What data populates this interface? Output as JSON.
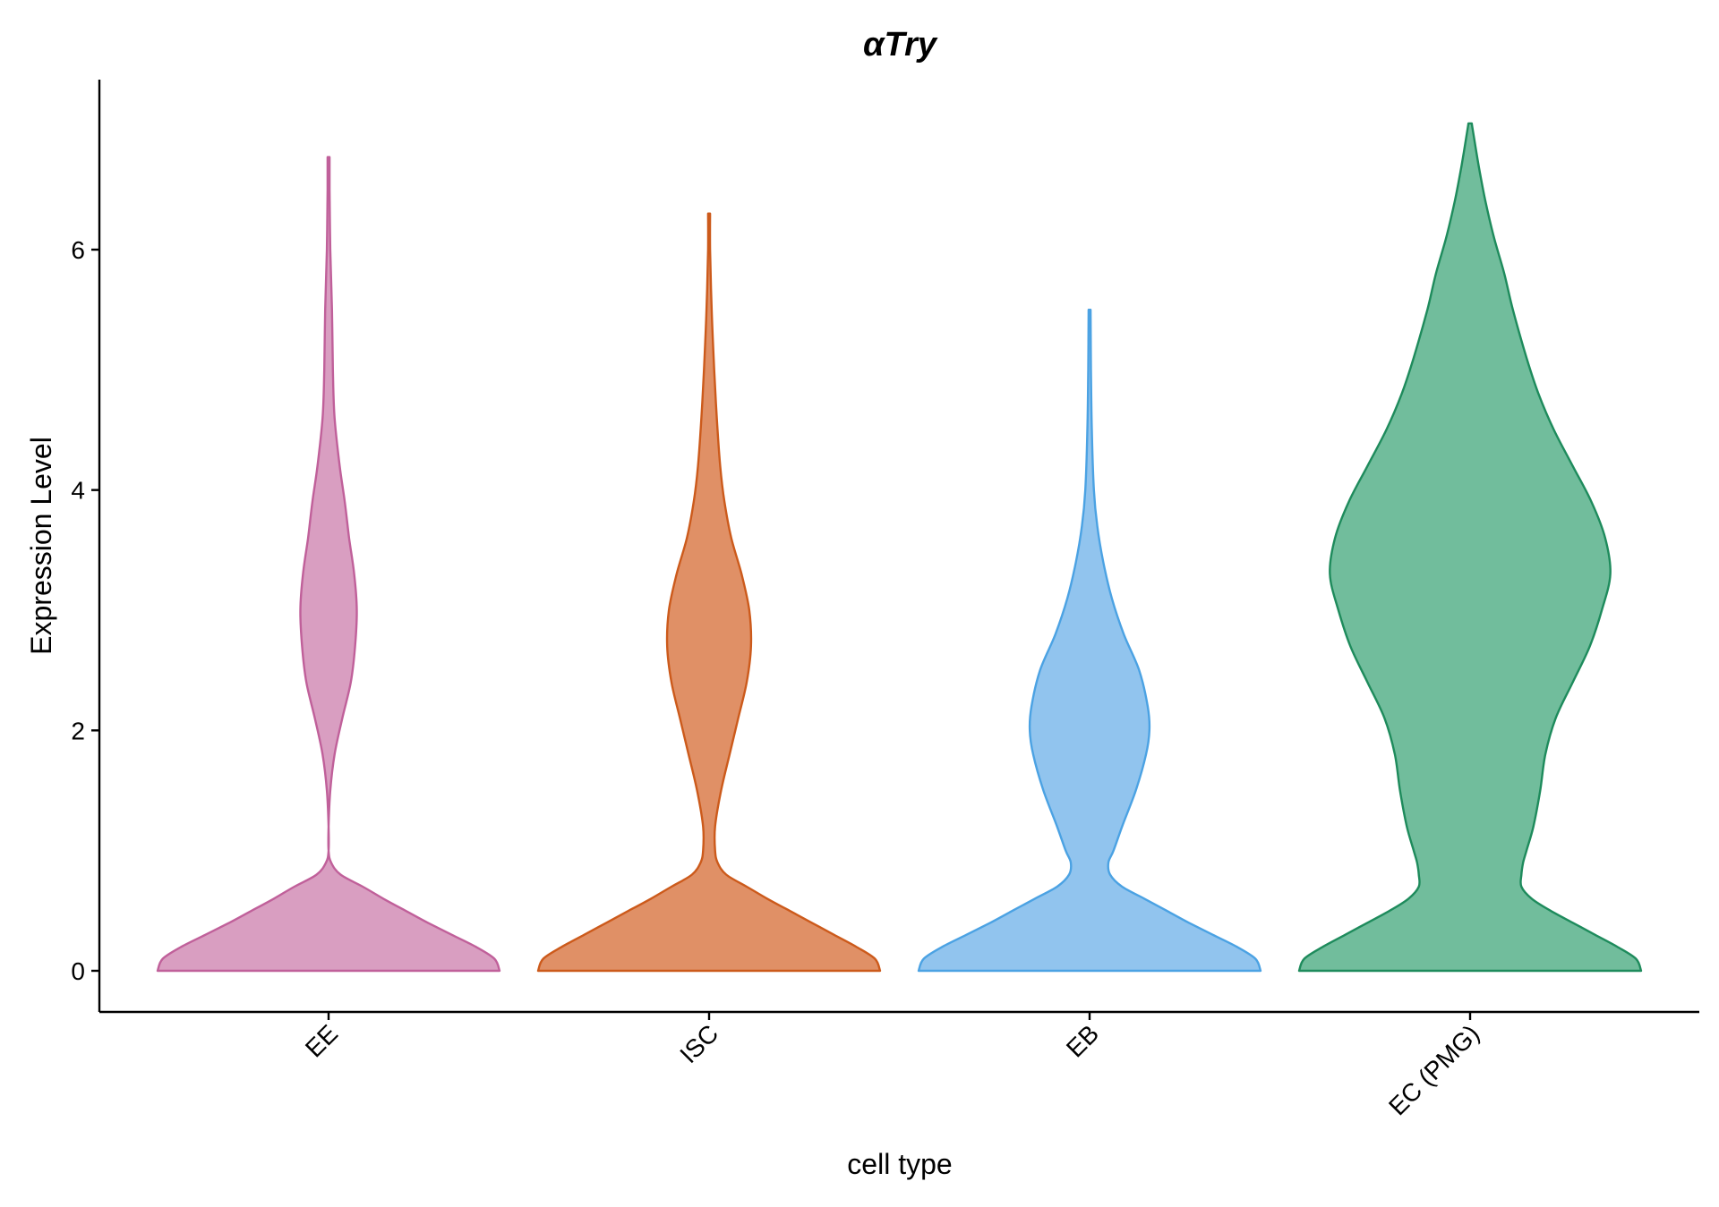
{
  "chart_data": {
    "type": "violin",
    "title": "αTry",
    "xlabel": "cell type",
    "ylabel": "Expression Level",
    "ylim": [
      -0.35,
      7.4
    ],
    "yticks": [
      0,
      2,
      4,
      6
    ],
    "grid": false,
    "legend": "none",
    "categories": [
      "EE",
      "ISC",
      "EB",
      "EC (PMG)"
    ],
    "series": [
      {
        "category": "EE",
        "fill": "#d99ec1",
        "stroke": "#c0609a",
        "max": 6.77,
        "profile": [
          [
            0,
            1.0
          ],
          [
            0.1,
            0.97
          ],
          [
            0.2,
            0.86
          ],
          [
            0.3,
            0.72
          ],
          [
            0.4,
            0.58
          ],
          [
            0.5,
            0.45
          ],
          [
            0.6,
            0.32
          ],
          [
            0.7,
            0.2
          ],
          [
            0.8,
            0.07
          ],
          [
            0.9,
            0.015
          ],
          [
            1.0,
            0.0
          ],
          [
            1.2,
            0.0
          ],
          [
            1.5,
            0.01
          ],
          [
            1.8,
            0.035
          ],
          [
            2.1,
            0.08
          ],
          [
            2.4,
            0.13
          ],
          [
            2.7,
            0.155
          ],
          [
            3.0,
            0.165
          ],
          [
            3.3,
            0.15
          ],
          [
            3.6,
            0.12
          ],
          [
            3.9,
            0.095
          ],
          [
            4.2,
            0.065
          ],
          [
            4.6,
            0.035
          ],
          [
            5.0,
            0.025
          ],
          [
            5.5,
            0.02
          ],
          [
            6.0,
            0.01
          ],
          [
            6.5,
            0.006
          ],
          [
            6.77,
            0.006
          ]
        ]
      },
      {
        "category": "ISC",
        "fill": "#e09066",
        "stroke": "#cc5a1b",
        "max": 6.3,
        "profile": [
          [
            0,
            1.0
          ],
          [
            0.1,
            0.97
          ],
          [
            0.2,
            0.86
          ],
          [
            0.3,
            0.73
          ],
          [
            0.4,
            0.6
          ],
          [
            0.5,
            0.47
          ],
          [
            0.6,
            0.34
          ],
          [
            0.7,
            0.22
          ],
          [
            0.8,
            0.1
          ],
          [
            0.9,
            0.05
          ],
          [
            1.0,
            0.035
          ],
          [
            1.2,
            0.035
          ],
          [
            1.5,
            0.07
          ],
          [
            1.8,
            0.12
          ],
          [
            2.1,
            0.17
          ],
          [
            2.4,
            0.22
          ],
          [
            2.7,
            0.245
          ],
          [
            3.0,
            0.235
          ],
          [
            3.3,
            0.19
          ],
          [
            3.6,
            0.13
          ],
          [
            3.9,
            0.09
          ],
          [
            4.2,
            0.065
          ],
          [
            4.6,
            0.045
          ],
          [
            5.0,
            0.03
          ],
          [
            5.5,
            0.015
          ],
          [
            6.0,
            0.006
          ],
          [
            6.3,
            0.006
          ]
        ]
      },
      {
        "category": "EB",
        "fill": "#91c4ee",
        "stroke": "#4ba2e3",
        "max": 5.5,
        "profile": [
          [
            0,
            1.0
          ],
          [
            0.1,
            0.97
          ],
          [
            0.2,
            0.86
          ],
          [
            0.3,
            0.72
          ],
          [
            0.4,
            0.58
          ],
          [
            0.5,
            0.45
          ],
          [
            0.6,
            0.32
          ],
          [
            0.7,
            0.19
          ],
          [
            0.8,
            0.12
          ],
          [
            0.9,
            0.11
          ],
          [
            1.0,
            0.14
          ],
          [
            1.2,
            0.19
          ],
          [
            1.5,
            0.27
          ],
          [
            1.8,
            0.33
          ],
          [
            2.0,
            0.35
          ],
          [
            2.2,
            0.34
          ],
          [
            2.5,
            0.29
          ],
          [
            2.8,
            0.2
          ],
          [
            3.1,
            0.13
          ],
          [
            3.4,
            0.08
          ],
          [
            3.7,
            0.045
          ],
          [
            4.0,
            0.025
          ],
          [
            4.5,
            0.013
          ],
          [
            5.0,
            0.008
          ],
          [
            5.5,
            0.006
          ]
        ]
      },
      {
        "category": "EC (PMG)",
        "fill": "#71bd9c",
        "stroke": "#1e8b5c",
        "max": 7.05,
        "profile": [
          [
            0,
            1.0
          ],
          [
            0.1,
            0.97
          ],
          [
            0.2,
            0.86
          ],
          [
            0.3,
            0.73
          ],
          [
            0.4,
            0.6
          ],
          [
            0.5,
            0.47
          ],
          [
            0.6,
            0.36
          ],
          [
            0.7,
            0.3
          ],
          [
            0.8,
            0.3
          ],
          [
            0.9,
            0.31
          ],
          [
            1.0,
            0.33
          ],
          [
            1.2,
            0.37
          ],
          [
            1.5,
            0.41
          ],
          [
            1.8,
            0.44
          ],
          [
            2.1,
            0.5
          ],
          [
            2.4,
            0.6
          ],
          [
            2.7,
            0.7
          ],
          [
            3.0,
            0.77
          ],
          [
            3.3,
            0.82
          ],
          [
            3.6,
            0.79
          ],
          [
            3.9,
            0.71
          ],
          [
            4.2,
            0.6
          ],
          [
            4.5,
            0.49
          ],
          [
            4.8,
            0.4
          ],
          [
            5.1,
            0.33
          ],
          [
            5.5,
            0.25
          ],
          [
            5.8,
            0.2
          ],
          [
            6.1,
            0.14
          ],
          [
            6.4,
            0.09
          ],
          [
            6.7,
            0.05
          ],
          [
            7.0,
            0.015
          ],
          [
            7.05,
            0.01
          ]
        ]
      }
    ]
  }
}
